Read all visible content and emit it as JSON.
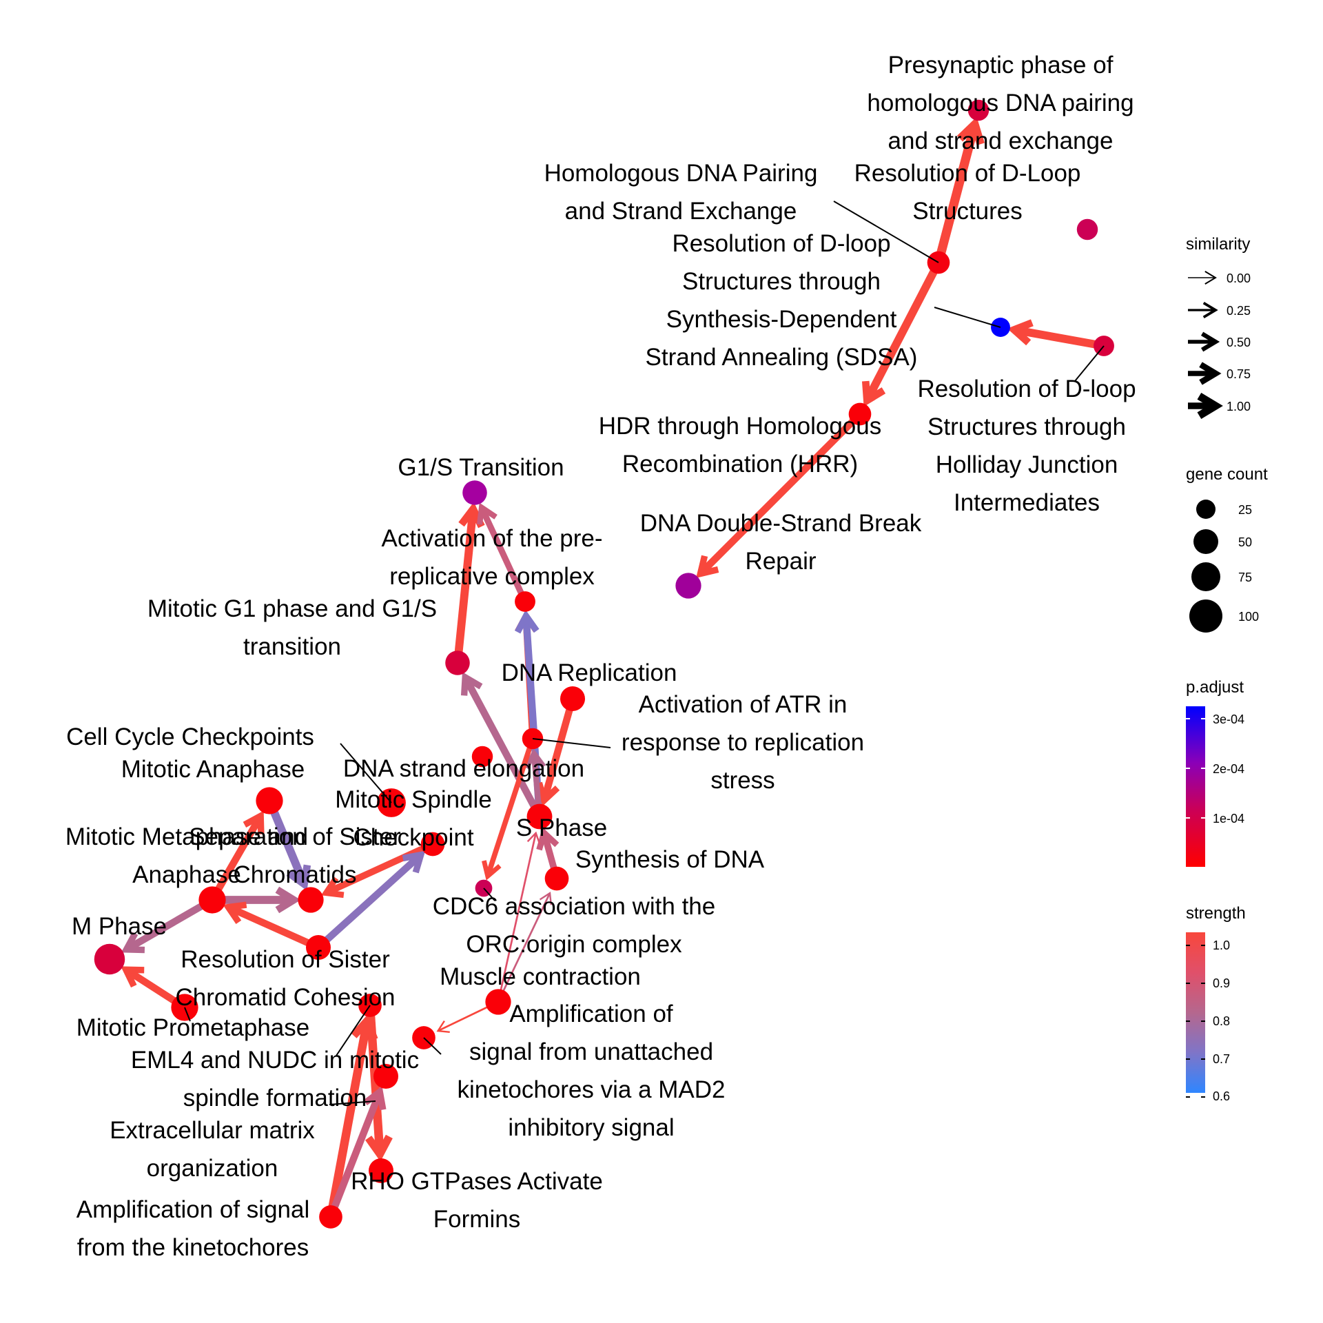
{
  "nodes": [
    {
      "id": "presyn",
      "label_lines": [
        "Presynaptic phase of",
        "homologous DNA pairing",
        "and strand exchange"
      ],
      "gene_count": 14,
      "color": "#d8003c"
    },
    {
      "id": "dloop_res",
      "label_lines": [
        "Resolution of D-Loop",
        "Structures"
      ],
      "gene_count": 14,
      "color": "#cc0055"
    },
    {
      "id": "homol_pair",
      "label_lines": [
        "Homologous DNA Pairing",
        "and Strand Exchange"
      ],
      "gene_count": 18,
      "color": "#f40010"
    },
    {
      "id": "sdsa",
      "label_lines": [
        "Resolution of D-loop",
        "Structures through",
        "Synthesis-Dependent",
        "Strand Annealing (SDSA)"
      ],
      "gene_count": 10,
      "color": "#0000ff"
    },
    {
      "id": "holliday",
      "label_lines": [
        "Resolution of D-loop",
        "Structures through",
        "Holliday Junction",
        "Intermediates"
      ],
      "gene_count": 13,
      "color": "#d8003c"
    },
    {
      "id": "hrr",
      "label_lines": [
        "HDR through Homologous",
        "Recombination (HRR)"
      ],
      "gene_count": 18,
      "color": "#fa0008"
    },
    {
      "id": "dsbr",
      "label_lines": [
        "DNA Double-Strand Break",
        "Repair"
      ],
      "gene_count": 28,
      "color": "#a0009a"
    },
    {
      "id": "g1s",
      "label_lines": [
        "G1/S Transition"
      ],
      "gene_count": 24,
      "color": "#a500a0"
    },
    {
      "id": "prerep",
      "label_lines": [
        "Activation of the pre-",
        "replicative complex"
      ],
      "gene_count": 13,
      "color": "#fa0008"
    },
    {
      "id": "mitg1s",
      "label_lines": [
        "Mitotic G1 phase and G1/S",
        "transition"
      ],
      "gene_count": 24,
      "color": "#d8003c"
    },
    {
      "id": "dnarep",
      "label_lines": [
        "DNA Replication"
      ],
      "gene_count": 25,
      "color": "#fa0008"
    },
    {
      "id": "atr",
      "label_lines": [
        "Activation of ATR in",
        "response to replication",
        "stress"
      ],
      "gene_count": 14,
      "color": "#fa0008"
    },
    {
      "id": "elong",
      "label_lines": [
        "DNA strand elongation"
      ],
      "gene_count": 14,
      "color": "#fa0008"
    },
    {
      "id": "cellcp",
      "label_lines": [
        "Cell Cycle Checkpoints"
      ],
      "gene_count": 40,
      "color": "#fa0008"
    },
    {
      "id": "mitana",
      "label_lines": [
        "Mitotic Anaphase"
      ],
      "gene_count": 33,
      "color": "#fa0008"
    },
    {
      "id": "spindle",
      "label_lines": [
        "Mitotic Spindle",
        "Checkpoint"
      ],
      "gene_count": 22,
      "color": "#fa0008"
    },
    {
      "id": "sphase",
      "label_lines": [
        "S Phase"
      ],
      "gene_count": 27,
      "color": "#fa0008"
    },
    {
      "id": "metana",
      "label_lines": [
        "Mitotic Metaphase and",
        "Anaphase"
      ],
      "gene_count": 33,
      "color": "#fa0008"
    },
    {
      "id": "sepsis",
      "label_lines": [
        "Separation of Sister",
        "Chromatids"
      ],
      "gene_count": 28,
      "color": "#fa0008"
    },
    {
      "id": "synth",
      "label_lines": [
        "Synthesis of DNA"
      ],
      "gene_count": 22,
      "color": "#fa0008"
    },
    {
      "id": "cdc6",
      "label_lines": [
        "CDC6 association with the",
        "ORC:origin complex"
      ],
      "gene_count": 6,
      "color": "#cc0055"
    },
    {
      "id": "mphase",
      "label_lines": [
        "M Phase"
      ],
      "gene_count": 48,
      "color": "#d8003c"
    },
    {
      "id": "sisres",
      "label_lines": [
        "Resolution of Sister",
        "Chromatid Cohesion"
      ],
      "gene_count": 25,
      "color": "#fa0008"
    },
    {
      "id": "muscle",
      "label_lines": [
        "Muscle contraction"
      ],
      "gene_count": 28,
      "color": "#fa0008"
    },
    {
      "id": "prometa",
      "label_lines": [
        "Mitotic Prometaphase"
      ],
      "gene_count": 33,
      "color": "#fa0008"
    },
    {
      "id": "eml4",
      "label_lines": [
        "EML4 and NUDC in mitotic",
        "spindle formation"
      ],
      "gene_count": 20,
      "color": "#fa0008"
    },
    {
      "id": "ampmad2",
      "label_lines": [
        "Amplification of",
        "signal from unattached",
        "kinetochores via a MAD2",
        "inhibitory signal"
      ],
      "gene_count": 20,
      "color": "#fa0008"
    },
    {
      "id": "ecm",
      "label_lines": [
        "Extracellular matrix",
        "organization"
      ],
      "gene_count": 25,
      "color": "#fa0008"
    },
    {
      "id": "rho",
      "label_lines": [
        "RHO GTPases Activate",
        "Formins"
      ],
      "gene_count": 25,
      "color": "#fa0008"
    },
    {
      "id": "ampkin",
      "label_lines": [
        "Amplification of signal",
        "from the kinetochores"
      ],
      "gene_count": 20,
      "color": "#fa0008"
    }
  ],
  "edges": [
    {
      "from": "homol_pair",
      "to": "presyn",
      "similarity": 0.8,
      "strength": 1.0
    },
    {
      "from": "homol_pair",
      "to": "hrr",
      "similarity": 0.7,
      "strength": 1.0
    },
    {
      "from": "holliday",
      "to": "sdsa",
      "similarity": 0.7,
      "strength": 1.0
    },
    {
      "from": "hrr",
      "to": "dsbr",
      "similarity": 0.6,
      "strength": 1.0
    },
    {
      "from": "mitg1s",
      "to": "g1s",
      "similarity": 0.7,
      "strength": 1.0
    },
    {
      "from": "prerep",
      "to": "g1s",
      "similarity": 0.5,
      "strength": 0.85
    },
    {
      "from": "atr",
      "to": "prerep",
      "similarity": 0.55,
      "strength": 1.0
    },
    {
      "from": "sphase",
      "to": "prerep",
      "similarity": 0.6,
      "strength": 0.7
    },
    {
      "from": "dnarep",
      "to": "sphase",
      "similarity": 0.6,
      "strength": 1.0
    },
    {
      "from": "sphase",
      "to": "mitg1s",
      "similarity": 0.6,
      "strength": 0.8
    },
    {
      "from": "sphase",
      "to": "atr",
      "similarity": 0.45,
      "strength": 0.8
    },
    {
      "from": "atr",
      "to": "cdc6",
      "similarity": 0.4,
      "strength": 1.0
    },
    {
      "from": "synth",
      "to": "sphase",
      "similarity": 0.55,
      "strength": 0.85
    },
    {
      "from": "muscle",
      "to": "sphase",
      "similarity": 0.05,
      "strength": 0.9
    },
    {
      "from": "muscle",
      "to": "synth",
      "similarity": 0.05,
      "strength": 0.85
    },
    {
      "from": "muscle",
      "to": "ampmad2",
      "similarity": 0.05,
      "strength": 1.0
    },
    {
      "from": "mitana",
      "to": "sepsis",
      "similarity": 0.7,
      "strength": 0.72
    },
    {
      "from": "spindle",
      "to": "sepsis",
      "similarity": 0.55,
      "strength": 1.0
    },
    {
      "from": "metana",
      "to": "mitana",
      "similarity": 0.6,
      "strength": 1.0
    },
    {
      "from": "metana",
      "to": "sepsis",
      "similarity": 0.7,
      "strength": 0.8
    },
    {
      "from": "metana",
      "to": "mphase",
      "similarity": 0.6,
      "strength": 0.8
    },
    {
      "from": "sisres",
      "to": "metana",
      "similarity": 0.6,
      "strength": 1.0
    },
    {
      "from": "sisres",
      "to": "spindle",
      "similarity": 0.6,
      "strength": 0.72
    },
    {
      "from": "prometa",
      "to": "mphase",
      "similarity": 0.6,
      "strength": 1.0
    },
    {
      "from": "eml4",
      "to": "rho",
      "similarity": 0.75,
      "strength": 1.0
    },
    {
      "from": "ampkin",
      "to": "eml4",
      "similarity": 0.75,
      "strength": 1.0
    },
    {
      "from": "ampkin",
      "to": "ecm",
      "similarity": 0.6,
      "strength": 0.85
    }
  ],
  "legend": {
    "similarity": {
      "title": "similarity",
      "ticks": [
        "0.00",
        "0.25",
        "0.50",
        "0.75",
        "1.00"
      ]
    },
    "gene_count": {
      "title": "gene count",
      "ticks": [
        "25",
        "50",
        "75",
        "100"
      ]
    },
    "padjust": {
      "title": "p.adjust",
      "ticks": [
        "3e-04",
        "2e-04",
        "1e-04"
      ],
      "colors": [
        "#0000ff",
        "#8a00b8",
        "#cc0055",
        "#ff0000"
      ]
    },
    "strength": {
      "title": "strength",
      "ticks": [
        "1.0",
        "0.9",
        "0.8",
        "0.7",
        "0.6"
      ],
      "colors": [
        "#f8473c",
        "#e0506a",
        "#b5678e",
        "#7f75c8",
        "#2f86ff"
      ]
    }
  }
}
